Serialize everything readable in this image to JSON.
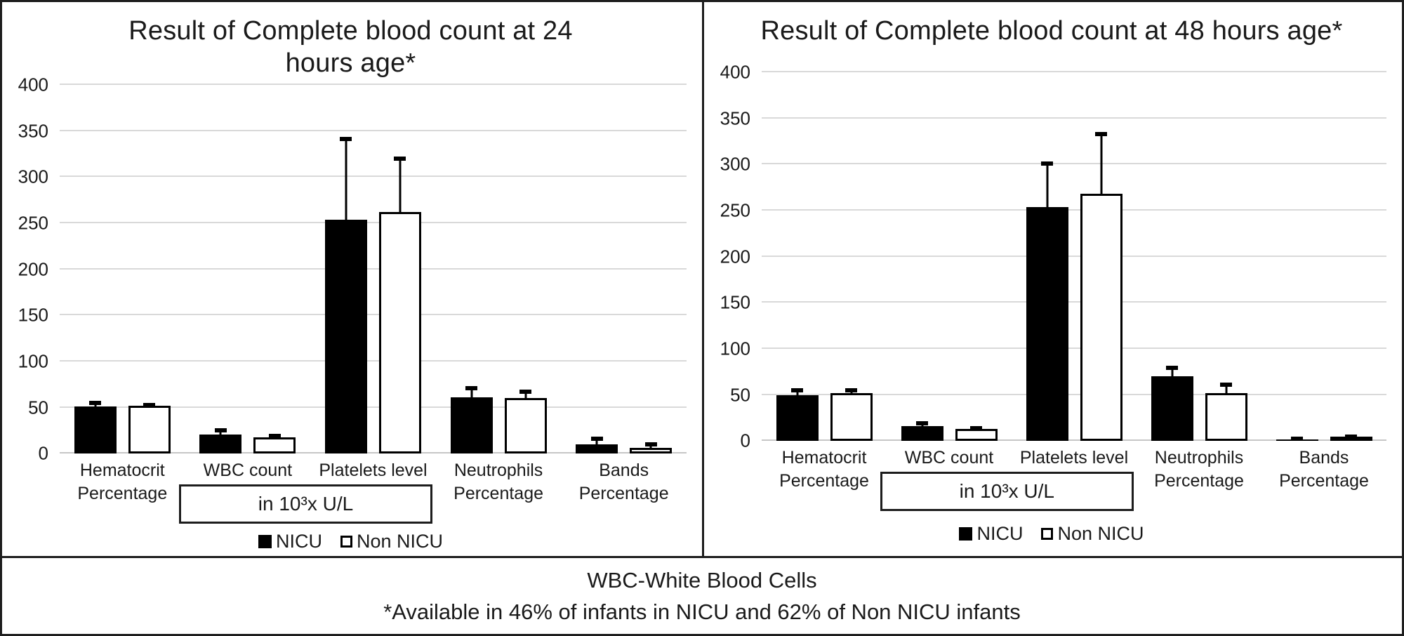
{
  "legend": {
    "items": [
      {
        "label": "NICU",
        "fill": "#000000"
      },
      {
        "label": "Non NICU",
        "fill": "#ffffff"
      }
    ]
  },
  "footer": {
    "line1": "WBC-White Blood Cells",
    "line2": "*Available in 46% of infants in NICU and 62% of Non NICU infants"
  },
  "colors": {
    "bar_nicu": "#000000",
    "bar_non_nicu": "#ffffff",
    "gridline": "#d9d9d9",
    "border": "#000000"
  },
  "chart_data": [
    {
      "type": "bar",
      "title": "Result of Complete blood count at 24 hours age*",
      "unit_annotation": "in 10³x  U/L",
      "categories": [
        "Hematocrit Percentage",
        "WBC count",
        "Platelets level",
        "Neutrophils Percentage",
        "Bands Percentage"
      ],
      "series": [
        {
          "name": "NICU",
          "color": "#000000",
          "values": [
            51,
            21,
            254,
            61,
            10
          ],
          "errors": [
            5,
            5,
            88,
            11,
            7
          ]
        },
        {
          "name": "Non NICU",
          "color": "#ffffff",
          "values": [
            52,
            18,
            262,
            60,
            6
          ],
          "errors": [
            4,
            4,
            61,
            10,
            7
          ]
        }
      ],
      "ylim": [
        0,
        400
      ],
      "ytick_interval": 50,
      "grid": true,
      "legend_position": "bottom"
    },
    {
      "type": "bar",
      "title": "Result of Complete blood count at 48 hours age*",
      "unit_annotation": "in 10³x  U/L",
      "categories": [
        "Hematocrit Percentage",
        "WBC count",
        "Platelets level",
        "Neutrophils Percentage",
        "Bands Percentage"
      ],
      "series": [
        {
          "name": "NICU",
          "color": "#000000",
          "values": [
            50,
            16,
            254,
            70,
            2
          ],
          "errors": [
            6,
            4,
            48,
            10,
            1
          ]
        },
        {
          "name": "Non NICU",
          "color": "#ffffff",
          "values": [
            52,
            13,
            268,
            52,
            4
          ],
          "errors": [
            6,
            4,
            68,
            12,
            3
          ]
        }
      ],
      "ylim": [
        0,
        400
      ],
      "ytick_interval": 50,
      "grid": true,
      "legend_position": "bottom"
    }
  ]
}
